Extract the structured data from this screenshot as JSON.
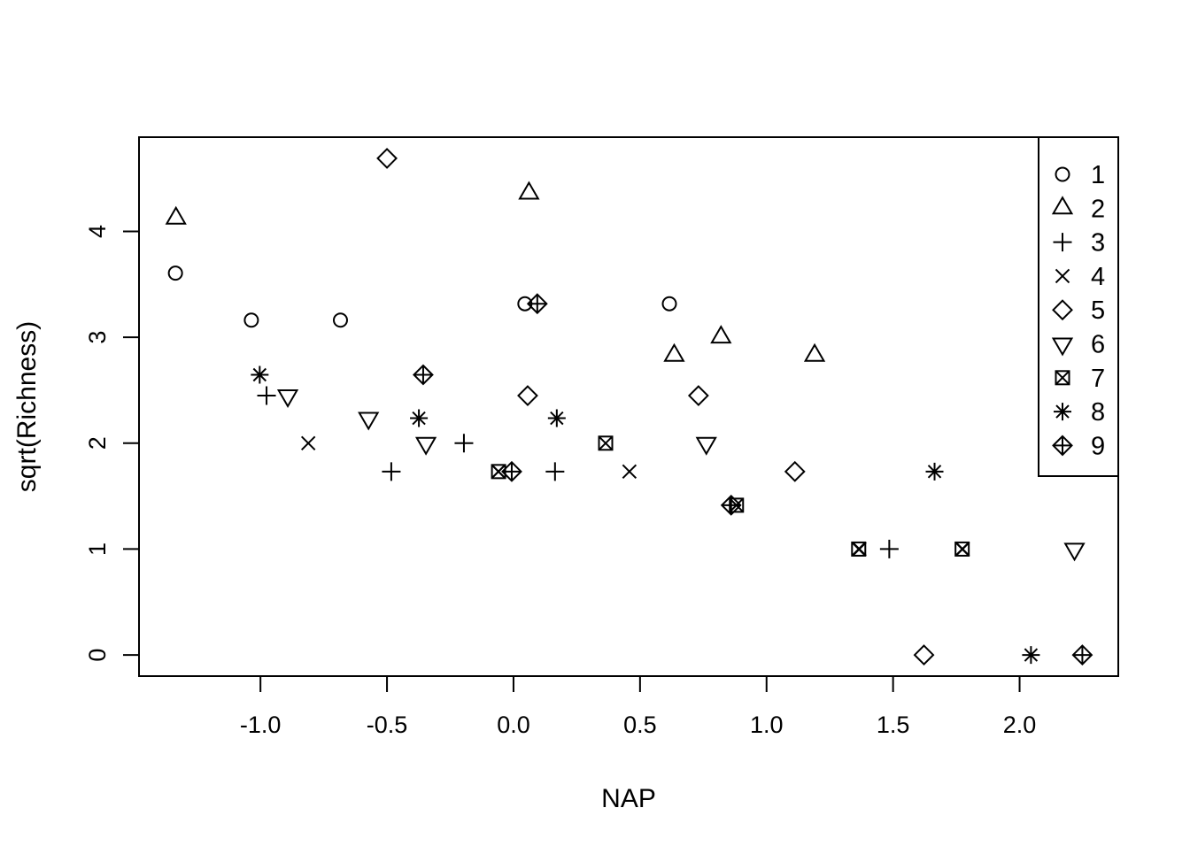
{
  "chart_data": {
    "type": "scatter",
    "title": "",
    "xlabel": "NAP",
    "ylabel": "sqrt(Richness)",
    "xlim": [
      -1.48,
      2.39
    ],
    "ylim": [
      -0.2,
      4.89
    ],
    "grid": false,
    "legend_position": "topright",
    "x_ticks": {
      "values": [
        -1.0,
        -0.5,
        0.0,
        0.5,
        1.0,
        1.5,
        2.0
      ],
      "labels": [
        "-1.0",
        "-0.5",
        "0.0",
        "0.5",
        "1.0",
        "1.5",
        "2.0"
      ]
    },
    "y_ticks": {
      "values": [
        0,
        1,
        2,
        3,
        4
      ],
      "labels": [
        "0",
        "1",
        "2",
        "3",
        "4"
      ]
    },
    "series": [
      {
        "name": "1",
        "symbol": "circle",
        "points": [
          [
            -1.336,
            3.606
          ],
          [
            -1.036,
            3.162
          ],
          [
            -0.684,
            3.162
          ],
          [
            0.045,
            3.317
          ],
          [
            0.616,
            3.317
          ]
        ]
      },
      {
        "name": "2",
        "symbol": "triangle-up",
        "points": [
          [
            -1.334,
            4.123
          ],
          [
            0.061,
            4.359
          ],
          [
            0.635,
            2.828
          ],
          [
            0.82,
            3.0
          ],
          [
            1.19,
            2.828
          ]
        ]
      },
      {
        "name": "3",
        "symbol": "plus",
        "points": [
          [
            -0.976,
            2.449
          ],
          [
            -0.483,
            1.732
          ],
          [
            -0.196,
            2.0
          ],
          [
            0.164,
            1.732
          ],
          [
            1.485,
            1.0
          ]
        ]
      },
      {
        "name": "4",
        "symbol": "x",
        "points": [
          [
            -0.811,
            2.0
          ],
          [
            -0.06,
            1.732
          ],
          [
            0.458,
            1.732
          ],
          [
            1.367,
            1.0
          ],
          [
            1.775,
            1.0
          ]
        ]
      },
      {
        "name": "5",
        "symbol": "diamond",
        "points": [
          [
            -0.5,
            4.69
          ],
          [
            0.056,
            2.449
          ],
          [
            0.731,
            2.449
          ],
          [
            1.112,
            1.732
          ],
          [
            1.622,
            0.0
          ]
        ]
      },
      {
        "name": "6",
        "symbol": "triangle-down",
        "points": [
          [
            -0.892,
            2.449
          ],
          [
            -0.573,
            2.236
          ],
          [
            -0.346,
            2.0
          ],
          [
            0.762,
            2.0
          ],
          [
            2.217,
            1.0
          ]
        ]
      },
      {
        "name": "7",
        "symbol": "square-x",
        "points": [
          [
            -0.059,
            1.732
          ],
          [
            0.364,
            2.0
          ],
          [
            0.881,
            1.414
          ],
          [
            1.364,
            1.0
          ],
          [
            1.773,
            1.0
          ]
        ]
      },
      {
        "name": "8",
        "symbol": "asterisk",
        "points": [
          [
            -1.003,
            2.646
          ],
          [
            -0.374,
            2.236
          ],
          [
            0.171,
            2.236
          ],
          [
            1.664,
            1.732
          ],
          [
            2.045,
            0.0
          ]
        ]
      },
      {
        "name": "9",
        "symbol": "diamond-plus",
        "points": [
          [
            -0.357,
            2.646
          ],
          [
            -0.007,
            1.732
          ],
          [
            0.094,
            3.317
          ],
          [
            0.86,
            1.414
          ],
          [
            2.248,
            0.0
          ]
        ]
      }
    ]
  },
  "colors": {
    "foreground": "#000000",
    "background": "#ffffff"
  }
}
